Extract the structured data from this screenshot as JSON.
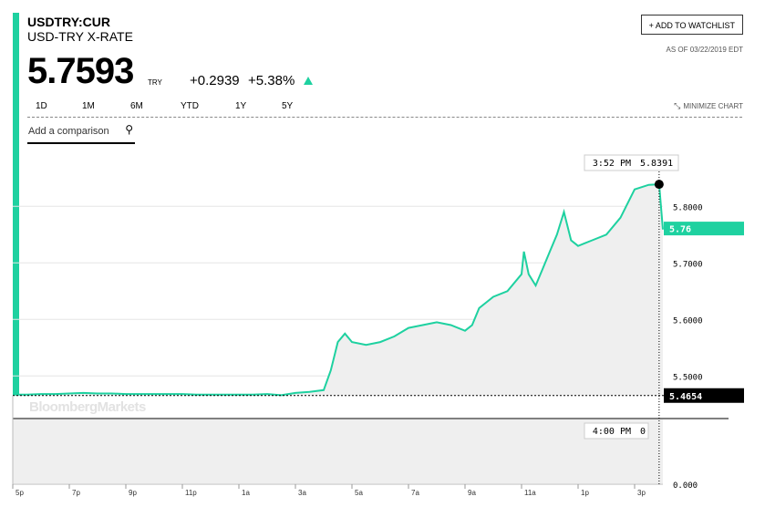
{
  "header": {
    "ticker": "USDTRY:CUR",
    "name": "USD-TRY X-RATE",
    "watchlist_label": "+ ADD TO WATCHLIST",
    "as_of": "AS OF 03/22/2019 EDT",
    "price": "5.7593",
    "currency": "TRY",
    "change": "+0.2939",
    "change_pct": "+5.38%"
  },
  "tabs": [
    "1D",
    "1M",
    "6M",
    "YTD",
    "1Y",
    "5Y"
  ],
  "active_tab": "1D",
  "minimize_label": "MINIMIZE CHART",
  "comparison": {
    "placeholder": "Add a comparison"
  },
  "watermark": "BloombergMarkets",
  "colors": {
    "accent": "#1ed1a0",
    "area": "#efefef",
    "text": "#000000"
  },
  "chart_data": {
    "type": "area",
    "title": "",
    "xlabel": "",
    "ylabel": "",
    "x_tick_labels": [
      "5p",
      "7p",
      "9p",
      "11p",
      "1a",
      "3a",
      "5a",
      "7a",
      "9a",
      "11a",
      "1p",
      "3p"
    ],
    "y_tick_labels": [
      "5.5000",
      "5.6000",
      "5.7000",
      "5.8000"
    ],
    "ylim": [
      5.465,
      5.865
    ],
    "current_value_label": "5.76",
    "previous_close_label": "5.4654",
    "grid": true,
    "series": [
      {
        "x": [
          "17:00",
          "17:30",
          "18:00",
          "18:30",
          "19:00",
          "19:30",
          "20:00",
          "20:30",
          "21:00",
          "21:30",
          "22:00",
          "22:30",
          "23:00",
          "23:30",
          "00:00",
          "00:30",
          "01:00",
          "01:30",
          "02:00",
          "02:30",
          "03:00",
          "03:30",
          "04:00",
          "04:15",
          "04:30",
          "04:45",
          "05:00",
          "05:30",
          "06:00",
          "06:30",
          "07:00",
          "07:30",
          "08:00",
          "08:30",
          "09:00",
          "09:15",
          "09:30",
          "10:00",
          "10:30",
          "11:00",
          "11:05",
          "11:15",
          "11:30",
          "11:45",
          "12:00",
          "12:15",
          "12:30",
          "12:45",
          "13:00",
          "13:15",
          "13:30",
          "14:00",
          "14:30",
          "15:00",
          "15:30",
          "15:52",
          "16:00"
        ],
        "y": [
          5.467,
          5.467,
          5.468,
          5.468,
          5.469,
          5.47,
          5.469,
          5.469,
          5.468,
          5.468,
          5.468,
          5.468,
          5.468,
          5.467,
          5.467,
          5.467,
          5.467,
          5.467,
          5.468,
          5.466,
          5.47,
          5.472,
          5.475,
          5.51,
          5.56,
          5.575,
          5.56,
          5.555,
          5.56,
          5.57,
          5.585,
          5.59,
          5.595,
          5.59,
          5.58,
          5.59,
          5.62,
          5.64,
          5.65,
          5.68,
          5.72,
          5.68,
          5.66,
          5.69,
          5.72,
          5.75,
          5.79,
          5.74,
          5.73,
          5.735,
          5.74,
          5.75,
          5.78,
          5.83,
          5.838,
          5.839,
          5.759
        ]
      }
    ],
    "crosshair": {
      "time_label": "3:52 PM",
      "value_label": "5.8391",
      "volume_time_label": "4:00 PM",
      "volume_value_label": "0"
    },
    "volume_axis_label": "0.000"
  }
}
